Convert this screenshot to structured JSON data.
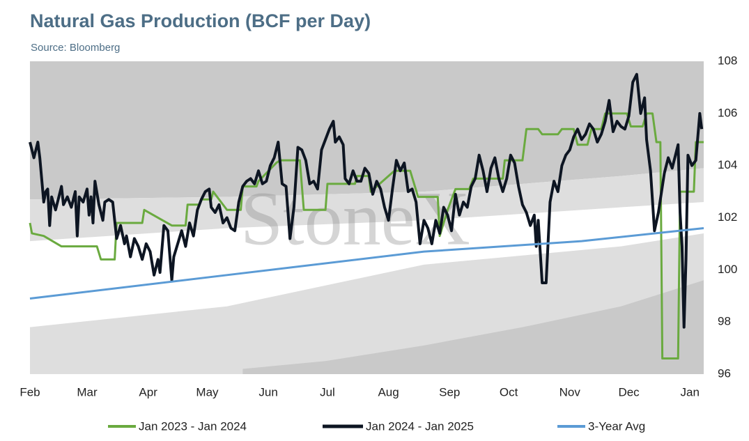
{
  "chart_data": {
    "type": "line",
    "title": "Natural Gas Production (BCF per Day)",
    "subtitle": "Source: Bloomberg",
    "watermark": "StoneX",
    "xlim": [
      0,
      342
    ],
    "xticks": [
      {
        "value": 0,
        "label": "Feb"
      },
      {
        "value": 29,
        "label": "Mar"
      },
      {
        "value": 60,
        "label": "Apr"
      },
      {
        "value": 90,
        "label": "May"
      },
      {
        "value": 121,
        "label": "Jun"
      },
      {
        "value": 151,
        "label": "Jul"
      },
      {
        "value": 182,
        "label": "Aug"
      },
      {
        "value": 213,
        "label": "Sep"
      },
      {
        "value": 243,
        "label": "Oct"
      },
      {
        "value": 274,
        "label": "Nov"
      },
      {
        "value": 304,
        "label": "Dec"
      },
      {
        "value": 335,
        "label": "Jan"
      }
    ],
    "ylim": [
      96,
      108
    ],
    "yticks": [
      96,
      98,
      100,
      102,
      104,
      106,
      108
    ],
    "y_axis_side": "right",
    "grid": false,
    "legend": "bottom",
    "bands": [
      {
        "color": "#c9c9c9",
        "x": [
          0,
          100,
          200,
          300,
          342
        ],
        "upper": [
          108,
          108,
          108,
          108,
          108
        ],
        "lower": [
          102.7,
          102.8,
          103.0,
          103.6,
          103.9
        ]
      },
      {
        "color": "#dedede",
        "x": [
          0,
          100,
          200,
          300,
          342
        ],
        "upper": [
          102.7,
          102.8,
          103.0,
          103.6,
          103.9
        ],
        "lower": [
          101.1,
          101.6,
          101.9,
          102.4,
          102.6
        ]
      },
      {
        "color": "#dedede",
        "x": [
          0,
          100,
          200,
          300,
          342
        ],
        "upper": [
          97.8,
          98.6,
          100.2,
          100.9,
          101.4
        ],
        "lower": [
          96,
          96,
          96,
          96,
          96
        ]
      },
      {
        "color": "#c9c9c9",
        "x": [
          108,
          150,
          200,
          250,
          300,
          342
        ],
        "upper": [
          96.2,
          96.5,
          97.1,
          97.8,
          98.6,
          99.6
        ],
        "lower": [
          96,
          96,
          96,
          96,
          96,
          96
        ]
      }
    ],
    "series": [
      {
        "name": "Jan 2023 - Jan 2024",
        "color": "#6aaa3f",
        "width": 3,
        "x": [
          0,
          1,
          7,
          16,
          34,
          36,
          43,
          44,
          57,
          58,
          72,
          79,
          80,
          86,
          87,
          92,
          93,
          100,
          107,
          108,
          115,
          116,
          125,
          127,
          137,
          139,
          150,
          151,
          165,
          166,
          172,
          173,
          185,
          193,
          197,
          207,
          208,
          212,
          216,
          223,
          225,
          240,
          241,
          250,
          252,
          258,
          260,
          268,
          270,
          276,
          278,
          283,
          285,
          290,
          292,
          303,
          305,
          311,
          313,
          316,
          318,
          320,
          321,
          329,
          330,
          337,
          338,
          342
        ],
        "values": [
          101.8,
          101.4,
          101.3,
          100.9,
          100.9,
          100.4,
          100.4,
          101.8,
          101.8,
          102.3,
          101.7,
          101.7,
          102.5,
          102.5,
          102.7,
          102.7,
          103.0,
          102.3,
          102.3,
          103.2,
          103.2,
          103.4,
          104.1,
          104.2,
          104.2,
          102.3,
          102.3,
          103.3,
          103.3,
          103.6,
          103.6,
          103.0,
          103.8,
          103.8,
          102.8,
          102.8,
          101.3,
          102.3,
          103.1,
          103.1,
          103.5,
          103.5,
          104.2,
          104.2,
          105.4,
          105.4,
          105.2,
          105.2,
          105.4,
          105.4,
          104.8,
          104.8,
          105.4,
          105.4,
          106.0,
          106.0,
          105.5,
          105.5,
          106.0,
          106.0,
          104.9,
          104.9,
          96.6,
          96.6,
          103.0,
          103.0,
          104.9,
          104.9
        ]
      },
      {
        "name": "Jan 2024 - Jan 2025",
        "color": "#0d1522",
        "width": 4,
        "x": [
          0,
          2,
          4,
          5,
          7,
          8,
          9,
          10,
          11,
          13,
          16,
          17,
          19,
          21,
          23,
          24,
          25,
          27,
          29,
          30,
          31,
          32,
          33,
          35,
          37,
          38,
          40,
          42,
          44,
          46,
          48,
          49,
          51,
          53,
          55,
          57,
          59,
          61,
          63,
          65,
          66,
          68,
          70,
          72,
          73,
          75,
          77,
          79,
          81,
          83,
          85,
          87,
          89,
          91,
          92,
          94,
          96,
          98,
          100,
          102,
          104,
          106,
          108,
          110,
          112,
          114,
          116,
          118,
          120,
          122,
          124,
          126,
          128,
          130,
          132,
          134,
          136,
          138,
          140,
          142,
          144,
          146,
          148,
          150,
          152,
          154,
          155,
          157,
          159,
          160,
          162,
          164,
          166,
          168,
          170,
          172,
          174,
          176,
          178,
          180,
          182,
          184,
          186,
          188,
          190,
          192,
          194,
          196,
          198,
          200,
          202,
          204,
          206,
          208,
          210,
          212,
          214,
          216,
          218,
          220,
          222,
          224,
          226,
          228,
          230,
          232,
          234,
          236,
          238,
          240,
          242,
          244,
          246,
          248,
          250,
          252,
          254,
          256,
          257,
          258,
          260,
          262,
          264,
          266,
          268,
          270,
          272,
          274,
          276,
          278,
          280,
          282,
          284,
          286,
          288,
          290,
          292,
          294,
          296,
          298,
          300,
          302,
          304,
          306,
          308,
          310,
          312,
          313,
          315,
          317,
          319,
          322,
          324,
          326,
          329,
          330,
          331,
          332,
          333,
          334,
          336,
          338,
          340,
          341
        ],
        "values": [
          104.9,
          104.3,
          104.9,
          104.3,
          102.6,
          103.0,
          103.1,
          101.7,
          102.8,
          102.3,
          103.2,
          102.5,
          102.8,
          102.4,
          103.0,
          101.3,
          102.8,
          102.6,
          103.1,
          102.1,
          102.8,
          101.8,
          103.4,
          102.5,
          101.9,
          102.6,
          102.7,
          102.6,
          101.2,
          101.7,
          101.0,
          101.3,
          100.5,
          101.2,
          100.9,
          100.4,
          101.0,
          100.7,
          99.8,
          100.4,
          99.9,
          101.7,
          101.5,
          99.6,
          100.5,
          101.0,
          101.5,
          100.9,
          101.8,
          101.3,
          102.3,
          102.7,
          103.0,
          103.1,
          102.4,
          102.2,
          102.5,
          101.8,
          102.0,
          101.6,
          101.5,
          102.6,
          103.2,
          103.4,
          103.5,
          103.3,
          103.8,
          103.3,
          103.4,
          104.0,
          104.3,
          104.9,
          103.3,
          103.2,
          101.2,
          102.4,
          104.7,
          104.6,
          104.2,
          103.3,
          103.4,
          103.1,
          104.6,
          105.0,
          105.4,
          105.7,
          104.9,
          105.1,
          104.8,
          103.5,
          103.3,
          103.8,
          103.4,
          103.4,
          103.9,
          103.7,
          102.9,
          103.4,
          103.1,
          102.4,
          101.9,
          103.1,
          104.2,
          103.8,
          104.1,
          103.0,
          103.1,
          102.6,
          101.0,
          101.9,
          101.6,
          101.0,
          101.9,
          101.4,
          102.4,
          102.1,
          101.5,
          102.9,
          102.1,
          102.6,
          102.4,
          103.2,
          103.5,
          104.4,
          103.8,
          103.0,
          103.9,
          104.3,
          103.5,
          103.0,
          103.5,
          104.4,
          104.1,
          103.2,
          102.5,
          102.2,
          101.7,
          102.1,
          100.9,
          101.9,
          99.5,
          99.5,
          102.6,
          103.4,
          103.0,
          104.0,
          104.4,
          104.6,
          105.1,
          105.4,
          105.0,
          105.2,
          105.6,
          105.4,
          104.9,
          105.2,
          105.7,
          106.5,
          105.3,
          105.7,
          105.5,
          105.4,
          105.9,
          107.2,
          107.5,
          106.0,
          106.6,
          105.0,
          103.8,
          101.5,
          102.2,
          103.7,
          104.3,
          103.9,
          104.8,
          102.2,
          100.9,
          97.8,
          100.4,
          104.4,
          104.0,
          104.2,
          106.0,
          105.4
        ]
      },
      {
        "name": "3-Year Avg",
        "color": "#5b9bd5",
        "width": 3,
        "x": [
          0,
          100,
          200,
          280,
          342
        ],
        "values": [
          98.9,
          99.8,
          100.7,
          101.1,
          101.6
        ]
      }
    ]
  }
}
